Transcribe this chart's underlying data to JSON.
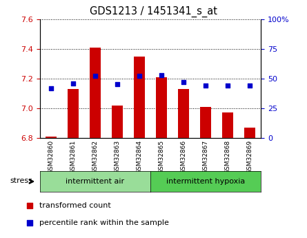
{
  "title": "GDS1213 / 1451341_s_at",
  "samples": [
    "GSM32860",
    "GSM32861",
    "GSM32862",
    "GSM32863",
    "GSM32864",
    "GSM32865",
    "GSM32866",
    "GSM32867",
    "GSM32868",
    "GSM32869"
  ],
  "bar_values": [
    6.81,
    7.13,
    7.41,
    7.02,
    7.35,
    7.21,
    7.13,
    7.01,
    6.97,
    6.87
  ],
  "percentile_values": [
    42,
    46,
    52,
    45,
    52,
    53,
    47,
    44,
    44,
    44
  ],
  "bar_color": "#cc0000",
  "point_color": "#0000cc",
  "ylim_left": [
    6.8,
    7.6
  ],
  "ylim_right": [
    0,
    100
  ],
  "yticks_left": [
    6.8,
    7.0,
    7.2,
    7.4,
    7.6
  ],
  "yticks_right": [
    0,
    25,
    50,
    75,
    100
  ],
  "ytick_labels_right": [
    "0",
    "25",
    "50",
    "75",
    "100%"
  ],
  "group1_label": "intermittent air",
  "group2_label": "intermittent hypoxia",
  "stress_label": "stress",
  "legend_bar_label": "transformed count",
  "legend_point_label": "percentile rank within the sample",
  "group1_color": "#99dd99",
  "group2_color": "#55cc55",
  "tick_bg_color": "#cccccc",
  "bar_color_left_axis": "#cc0000",
  "point_color_right_axis": "#0000cc",
  "bar_bottom": 6.8
}
